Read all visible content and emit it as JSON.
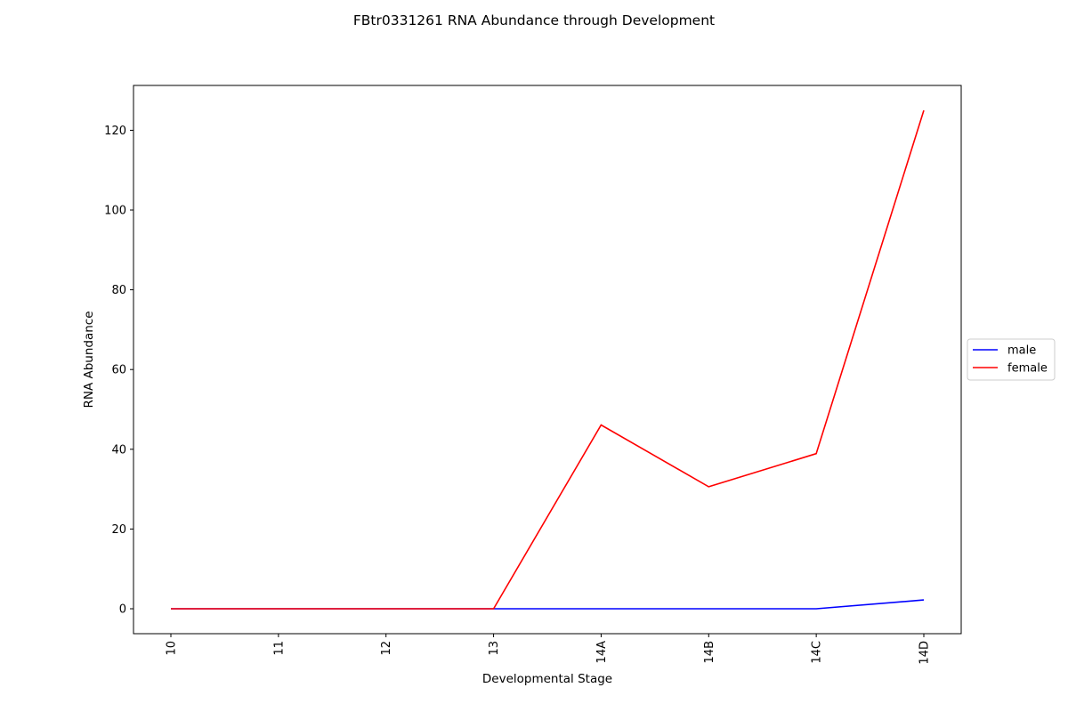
{
  "chart_data": {
    "type": "line",
    "title": "FBtr0331261 RNA Abundance through Development",
    "xlabel": "Developmental Stage",
    "ylabel": "RNA Abundance",
    "categories": [
      "10",
      "11",
      "12",
      "13",
      "14A",
      "14B",
      "14C",
      "14D"
    ],
    "series": [
      {
        "name": "male",
        "color": "#0000ff",
        "values": [
          0,
          0,
          0,
          0,
          0,
          0,
          0,
          2.2
        ]
      },
      {
        "name": "female",
        "color": "#ff0000",
        "values": [
          0,
          0,
          0,
          0,
          46.1,
          30.6,
          38.9,
          125.0
        ]
      }
    ],
    "ylim": [
      -6.25,
      131.25
    ],
    "yticks": [
      0,
      20,
      40,
      60,
      80,
      100,
      120
    ],
    "grid": false,
    "legend": "center-right outside"
  }
}
